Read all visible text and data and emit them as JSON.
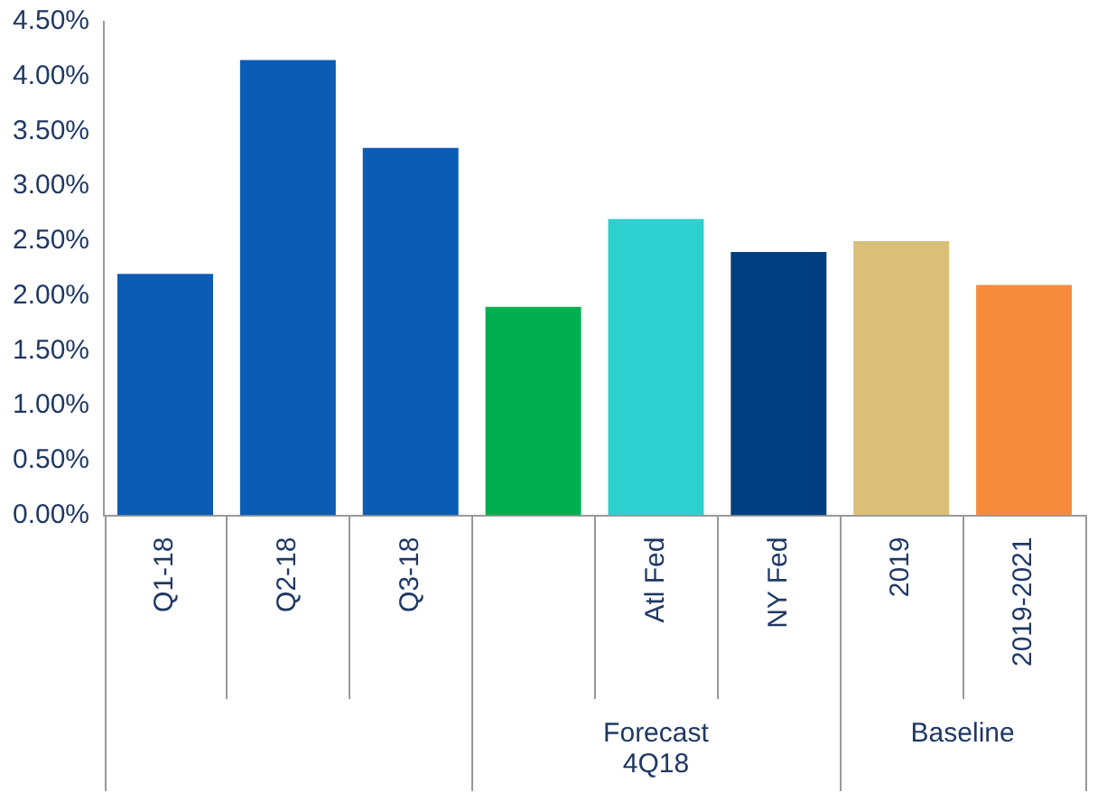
{
  "chart_data": {
    "type": "bar",
    "categories": [
      "Q1-18",
      "Q2-18",
      "Q3-18",
      null,
      "Atl Fed",
      "NY Fed",
      "2019",
      "2019-2021"
    ],
    "values": [
      2.2,
      4.15,
      3.35,
      1.9,
      2.7,
      2.4,
      2.5,
      2.1
    ],
    "colors": [
      "#0b5cb5",
      "#0b5cb5",
      "#0b5cb5",
      "#00b050",
      "#2ecfcf",
      "#003f7f",
      "#d9bf77",
      "#f68b3c"
    ],
    "ylim": [
      0,
      4.5
    ],
    "yticks": [
      {
        "value": 0,
        "label": "0.00%"
      },
      {
        "value": 0.5,
        "label": "0.50%"
      },
      {
        "value": 1,
        "label": "1.00%"
      },
      {
        "value": 1.5,
        "label": "1.50%"
      },
      {
        "value": 2,
        "label": "2.00%"
      },
      {
        "value": 2.5,
        "label": "2.50%"
      },
      {
        "value": 3,
        "label": "3.00%"
      },
      {
        "value": 3.5,
        "label": "3.50%"
      },
      {
        "value": 4,
        "label": "4.00%"
      },
      {
        "value": 4.5,
        "label": "4.50%"
      }
    ],
    "grid": false,
    "legend": false,
    "annotations": [
      "Forecast\n4Q18",
      "Baseline"
    ]
  }
}
